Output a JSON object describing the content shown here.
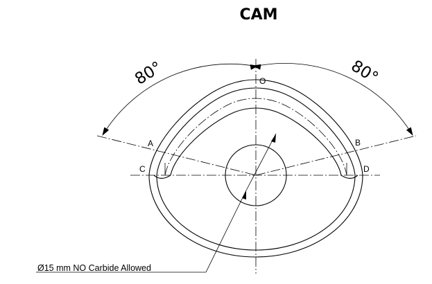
{
  "title": "CAM",
  "angle_left": "80°",
  "angle_right": "80°",
  "points": {
    "o": "O",
    "a": "A",
    "b": "B",
    "c": "C",
    "d": "D"
  },
  "callout": "Ø15 mm NO Carbide Allowed"
}
